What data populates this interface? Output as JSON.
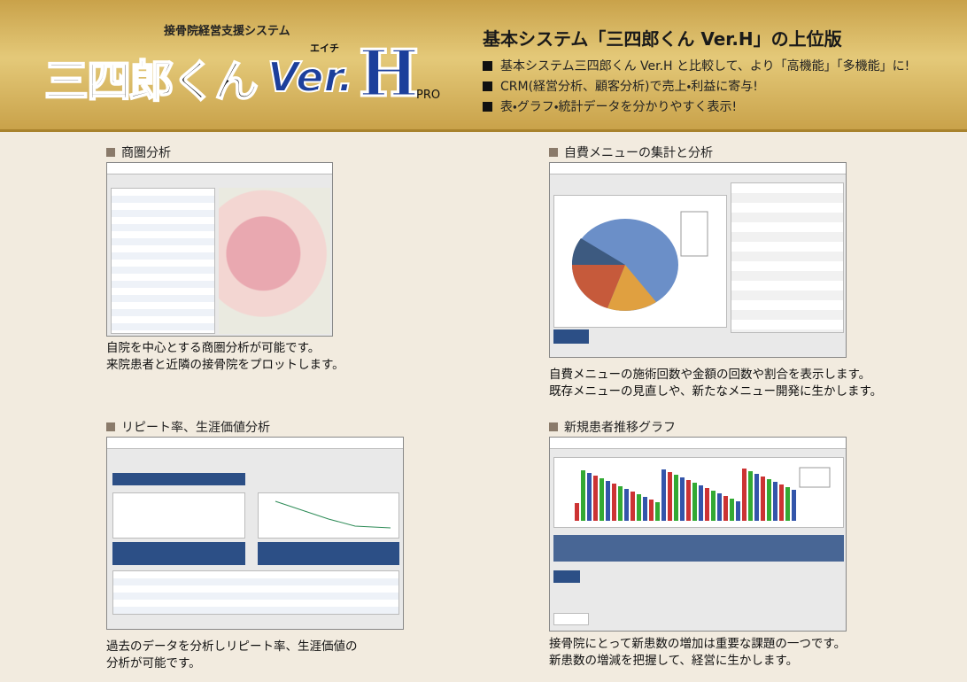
{
  "header": {
    "tagline": "接骨院経営支援システム",
    "logo": {
      "name": "三四郎くん",
      "version": "Ver.",
      "letter": "H",
      "ruby": "エイチ",
      "edition": "PRO"
    },
    "title": "基本システム「三四郎くん Ver.H」の上位版",
    "bullets": [
      "基本システム三四郎くん Ver.H と比較して、より「高機能」「多機能」に!",
      "CRM(経営分析、顧客分析)で売上・利益に寄与!",
      "表・グラフ・統計データを分かりやすく表示!"
    ]
  },
  "sections": [
    {
      "heading": "商圏分析",
      "description": [
        "自院を中心とする商圏分析が可能です。",
        "来院患者と近隣の接骨院をプロットします。"
      ]
    },
    {
      "heading": "自費メニューの集計と分析",
      "description": [
        "自費メニューの施術回数や金額の回数や割合を表示します。",
        "既存メニューの見直しや、新たなメニュー開発に生かします。"
      ]
    },
    {
      "heading": "リピート率、生涯価値分析",
      "description": [
        "過去のデータを分析しリピート率、生涯価値の",
        "分析が可能です。"
      ]
    },
    {
      "heading": "新規患者推移グラフ",
      "description": [
        "接骨院にとって新患数の増加は重要な課題の一つです。",
        "新患数の増減を把握して、経営に生かします。"
      ]
    }
  ]
}
